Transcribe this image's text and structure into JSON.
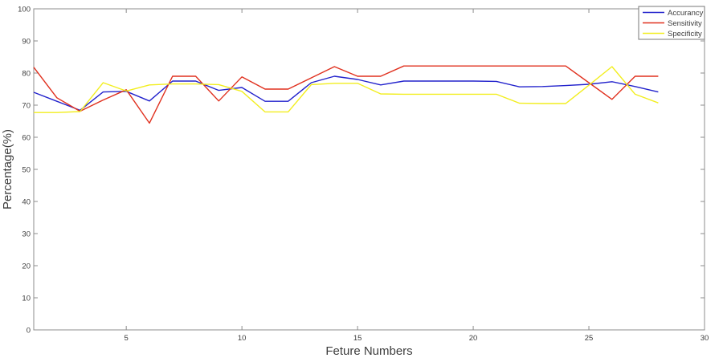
{
  "figure": {
    "background": "#ffffff",
    "axis_color": "#8c8c8c",
    "text_color": "#3d3d3d",
    "legend_border_color": "#777777"
  },
  "chart_data": {
    "type": "line",
    "title": "",
    "xlabel": "Feture Numbers",
    "ylabel": "Percentage(%)",
    "xlim": [
      1,
      30
    ],
    "ylim": [
      0,
      100
    ],
    "xticks": [
      5,
      10,
      15,
      20,
      25,
      30
    ],
    "yticks": [
      0,
      10,
      20,
      30,
      40,
      50,
      60,
      70,
      80,
      90,
      100
    ],
    "grid": false,
    "legend_position": "top-right",
    "x": [
      1,
      2,
      3,
      4,
      5,
      6,
      7,
      8,
      9,
      10,
      11,
      12,
      13,
      14,
      15,
      16,
      17,
      18,
      19,
      20,
      21,
      22,
      23,
      24,
      25,
      26,
      27,
      28
    ],
    "series": [
      {
        "name": "Accurancy",
        "color": "#2222cc",
        "values": [
          74,
          71.2,
          68.4,
          74.1,
          74.3,
          71.3,
          77.5,
          77.5,
          74.6,
          75.5,
          71.2,
          71.2,
          77,
          79,
          78,
          76.3,
          77.5,
          77.5,
          77.5,
          77.5,
          77.4,
          75.7,
          75.8,
          76.1,
          76.5,
          77.3,
          75.8,
          74.1
        ]
      },
      {
        "name": "Sensitivity",
        "color": "#e0301e",
        "values": [
          81.8,
          72.3,
          68.1,
          71.6,
          74.8,
          64.4,
          79,
          79,
          71.3,
          78.8,
          75,
          75,
          78.5,
          82,
          79,
          79,
          82.2,
          82.2,
          82.2,
          82.2,
          82.2,
          82.2,
          82.2,
          82.2,
          77,
          71.8,
          79,
          79
        ]
      },
      {
        "name": "Specificity",
        "color": "#f2ee1f",
        "values": [
          67.7,
          67.7,
          68,
          77,
          74.4,
          76.3,
          76.6,
          76.6,
          76.4,
          74.3,
          67.9,
          67.9,
          76.4,
          76.8,
          76.8,
          73.5,
          73.4,
          73.4,
          73.4,
          73.4,
          73.4,
          70.6,
          70.5,
          70.5,
          76.2,
          82,
          73.4,
          70.7
        ]
      }
    ]
  }
}
